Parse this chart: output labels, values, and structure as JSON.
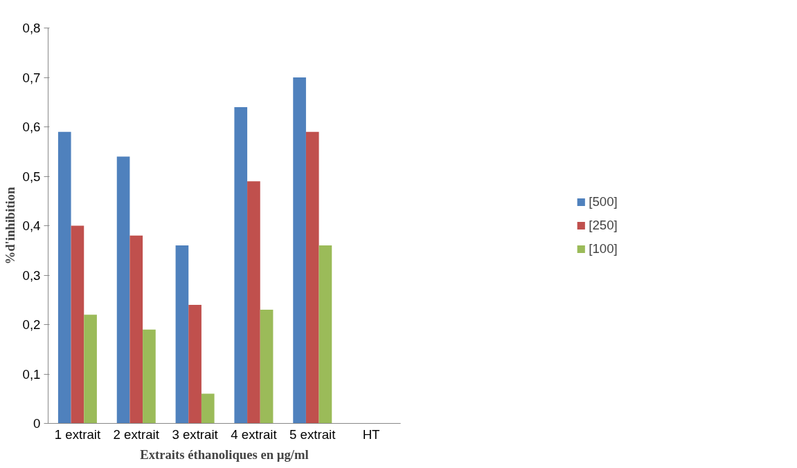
{
  "chart_data": {
    "type": "bar",
    "xlabel": "Extraits éthanoliques en µg/ml",
    "ylabel": "%d'inhibition",
    "categories": [
      "1 extrait",
      "2 extrait",
      "3 extrait",
      "4 extrait",
      "5 extrait",
      "HT"
    ],
    "series": [
      {
        "name": "[500]",
        "color": "#4f81bd",
        "values": [
          0.59,
          0.54,
          0.36,
          0.64,
          0.7,
          null
        ]
      },
      {
        "name": "[250]",
        "color": "#c0504d",
        "values": [
          0.4,
          0.38,
          0.24,
          0.49,
          0.59,
          null
        ]
      },
      {
        "name": "[100]",
        "color": "#9bbb59",
        "values": [
          0.22,
          0.19,
          0.06,
          0.23,
          0.36,
          null
        ]
      }
    ],
    "ylim": [
      0,
      0.8
    ],
    "yticks": [
      {
        "value": 0,
        "label": "0"
      },
      {
        "value": 0.1,
        "label": "0,1"
      },
      {
        "value": 0.2,
        "label": "0,2"
      },
      {
        "value": 0.3,
        "label": "0,3"
      },
      {
        "value": 0.4,
        "label": "0,4"
      },
      {
        "value": 0.5,
        "label": "0,5"
      },
      {
        "value": 0.6,
        "label": "0,6"
      },
      {
        "value": 0.7,
        "label": "0,7"
      },
      {
        "value": 0.8,
        "label": "0,8"
      }
    ],
    "grid": false,
    "legend": "right"
  }
}
